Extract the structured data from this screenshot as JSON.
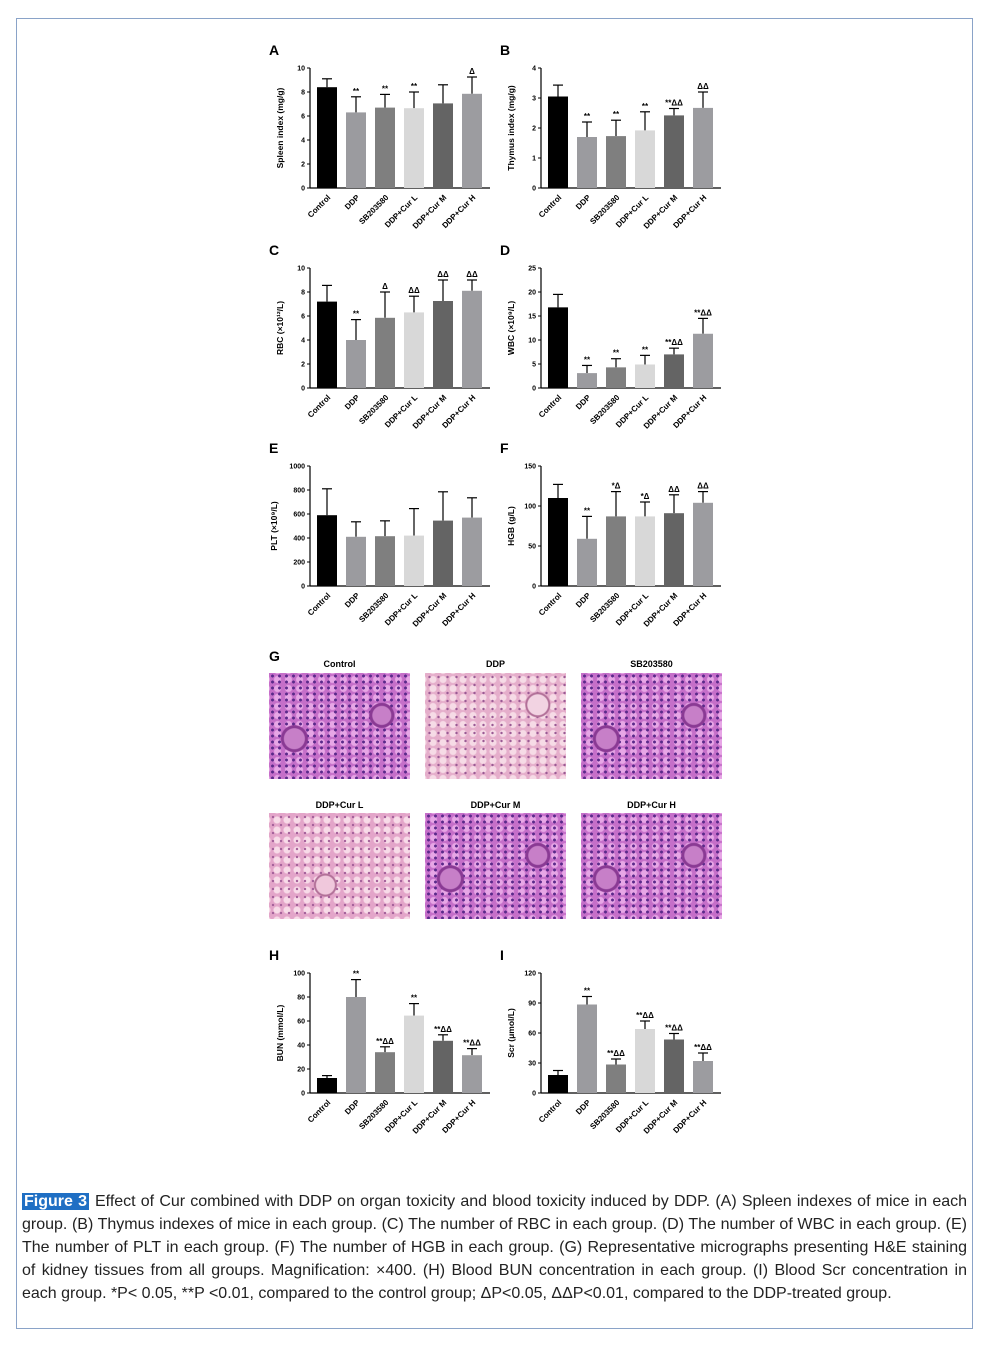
{
  "categories": [
    "Control",
    "DDP",
    "SB203580",
    "DDP+Cur L",
    "DDP+Cur M",
    "DDP+Cur H"
  ],
  "colors": {
    "Control": "#000000",
    "DDP": "#9b9b9f",
    "SB203580": "#7f7f7f",
    "DDP+Cur L": "#d8d8d8",
    "DDP+Cur M": "#646464",
    "DDP+Cur H": "#9c9ca0",
    "badge": "#1f6fc4",
    "frame": "#8aa3c8"
  },
  "chart_data": [
    {
      "panel": "A",
      "type": "bar",
      "ylabel": "Spleen index (mg/g)",
      "ylim": [
        0,
        10
      ],
      "yticks": [
        0,
        2,
        4,
        6,
        8,
        10
      ],
      "values": [
        8.4,
        6.3,
        6.7,
        6.65,
        7.05,
        7.85
      ],
      "errors": [
        0.7,
        1.3,
        1.1,
        1.35,
        1.55,
        1.4
      ],
      "annotations": [
        "",
        "**",
        "**",
        "**",
        "",
        "Δ"
      ]
    },
    {
      "panel": "B",
      "type": "bar",
      "ylabel": "Thymus index (mg/g)",
      "ylim": [
        0,
        4
      ],
      "yticks": [
        0,
        1,
        2,
        3,
        4
      ],
      "values": [
        3.05,
        1.7,
        1.73,
        1.92,
        2.42,
        2.67
      ],
      "errors": [
        0.38,
        0.5,
        0.53,
        0.62,
        0.23,
        0.53
      ],
      "annotations": [
        "",
        "**",
        "**",
        "**",
        "**ΔΔ",
        "ΔΔ"
      ]
    },
    {
      "panel": "C",
      "type": "bar",
      "ylabel": "RBC (×10¹²/L)",
      "ylim": [
        0,
        10
      ],
      "yticks": [
        0,
        2,
        4,
        6,
        8,
        10
      ],
      "values": [
        7.2,
        4.0,
        5.85,
        6.3,
        7.25,
        8.1
      ],
      "errors": [
        1.35,
        1.7,
        2.15,
        1.35,
        1.75,
        0.9
      ],
      "annotations": [
        "",
        "**",
        "Δ",
        "ΔΔ",
        "ΔΔ",
        "ΔΔ"
      ]
    },
    {
      "panel": "D",
      "type": "bar",
      "ylabel": "WBC (×10⁹/L)",
      "ylim": [
        0,
        25
      ],
      "yticks": [
        0,
        5,
        10,
        15,
        20,
        25
      ],
      "values": [
        16.8,
        3.1,
        4.3,
        4.9,
        7.0,
        11.3
      ],
      "errors": [
        2.7,
        1.6,
        1.8,
        1.9,
        1.3,
        3.2
      ],
      "annotations": [
        "",
        "**",
        "**",
        "**",
        "**ΔΔ",
        "**ΔΔ"
      ]
    },
    {
      "panel": "E",
      "type": "bar",
      "ylabel": "PLT (×10⁹/L)",
      "ylim": [
        0,
        1000
      ],
      "yticks": [
        0,
        200,
        400,
        600,
        800,
        1000
      ],
      "values": [
        590,
        410,
        415,
        420,
        545,
        570
      ],
      "errors": [
        220,
        125,
        128,
        225,
        240,
        165
      ],
      "annotations": [
        "",
        "",
        "",
        "",
        "",
        ""
      ]
    },
    {
      "panel": "F",
      "type": "bar",
      "ylabel": "HGB (g/L)",
      "ylim": [
        0,
        150
      ],
      "yticks": [
        0,
        50,
        100,
        150
      ],
      "values": [
        110,
        59,
        87,
        87,
        91,
        104
      ],
      "errors": [
        17,
        28,
        31,
        18,
        23,
        14
      ],
      "annotations": [
        "",
        "**",
        "*Δ",
        "*Δ",
        "ΔΔ",
        "ΔΔ"
      ]
    },
    {
      "panel": "H",
      "type": "bar",
      "ylabel": "BUN (mmol/L)",
      "ylim": [
        0,
        100
      ],
      "yticks": [
        0,
        20,
        40,
        60,
        80,
        100
      ],
      "values": [
        12.5,
        80,
        34,
        64.5,
        43.5,
        31.5
      ],
      "errors": [
        2,
        14.5,
        4.5,
        10,
        5,
        5.5
      ],
      "annotations": [
        "",
        "**",
        "**ΔΔ",
        "**",
        "**ΔΔ",
        "**ΔΔ"
      ]
    },
    {
      "panel": "I",
      "type": "bar",
      "ylabel": "Scr (μmol/L)",
      "ylim": [
        0,
        120
      ],
      "yticks": [
        0,
        30,
        60,
        90,
        120
      ],
      "values": [
        18,
        88.5,
        28.5,
        64,
        53.5,
        32
      ],
      "errors": [
        4.5,
        8,
        5.5,
        8,
        6,
        8
      ],
      "annotations": [
        "",
        "**",
        "**ΔΔ",
        "**ΔΔ",
        "**ΔΔ",
        "**ΔΔ"
      ]
    }
  ],
  "micrographs": {
    "panel": "G",
    "titles": [
      "Control",
      "DDP",
      "SB203580",
      "DDP+Cur L",
      "DDP+Cur M",
      "DDP+Cur H"
    ]
  },
  "caption": {
    "badge": "Figure 3",
    "text": "Effect of Cur combined with DDP on organ toxicity and blood toxicity induced by DDP. (A) Spleen indexes of mice in each group. (B) Thymus indexes of mice in each group. (C) The number of RBC in each group. (D) The number of WBC in each group. (E) The number of PLT in each group. (F) The number of HGB in each group. (G) Representative micrographs presenting H&E staining of kidney tissues from all groups. Magnification: ×400. (H) Blood BUN concentration in each group. (I) Blood Scr concentration in each group. *P< 0.05, **P <0.01, compared to the control group; ΔP<0.05, ΔΔP<0.01, compared to the DDP-treated group."
  }
}
